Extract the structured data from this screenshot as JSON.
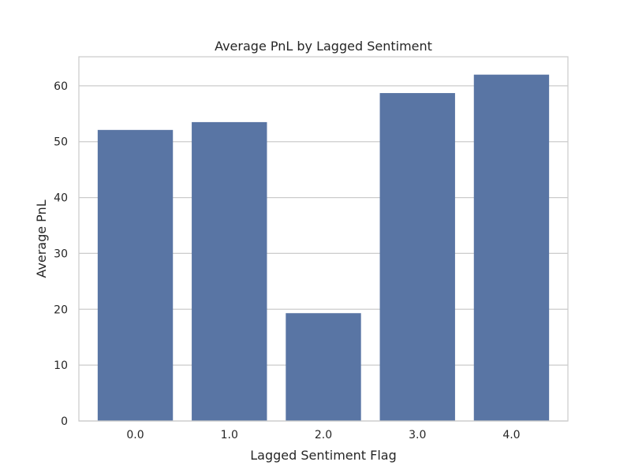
{
  "chart_data": {
    "type": "bar",
    "title": "Average PnL by Lagged Sentiment",
    "xlabel": "Lagged Sentiment Flag",
    "ylabel": "Average PnL",
    "categories": [
      "0.0",
      "1.0",
      "2.0",
      "3.0",
      "4.0"
    ],
    "values": [
      52.1,
      53.5,
      19.3,
      58.7,
      62.0
    ],
    "ylim": [
      0,
      65.2
    ],
    "yticks": [
      0,
      10,
      20,
      30,
      40,
      50,
      60
    ],
    "grid": true,
    "legend": "none",
    "colors": {
      "bar": "#5975a4",
      "grid": "#cccccc",
      "spine": "#cccccc",
      "text": "#262626"
    }
  }
}
